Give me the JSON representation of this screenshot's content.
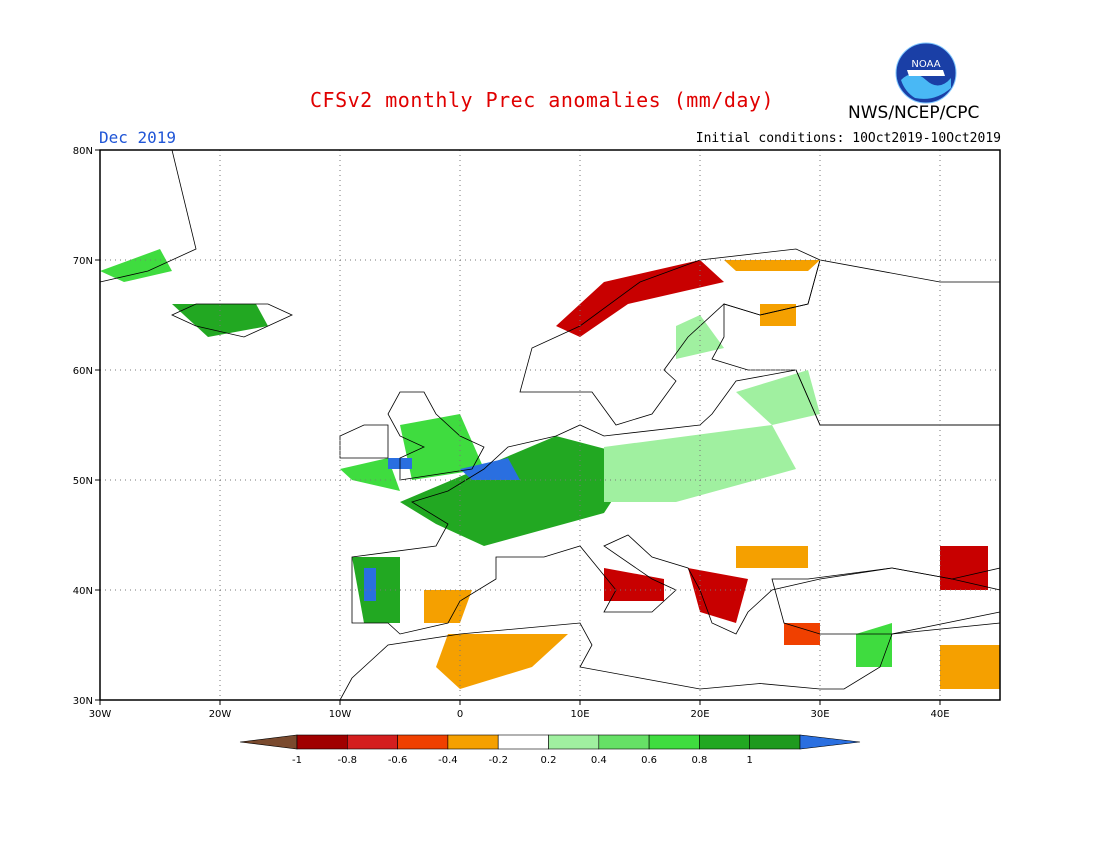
{
  "header": {
    "title": "CFSv2 monthly Prec anomalies (mm/day)",
    "month": "Dec 2019",
    "initial_conditions": "Initial conditions: 10Oct2019-10Oct2019",
    "agency": "NWS/NCEP/CPC",
    "logo_text": "NOAA",
    "logo_icon": "noaa-logo-icon"
  },
  "map": {
    "lon_range": [
      -30,
      45
    ],
    "lat_range": [
      30,
      80
    ],
    "lon_ticks": [
      {
        "value": -30,
        "label": "30W"
      },
      {
        "value": -20,
        "label": "20W"
      },
      {
        "value": -10,
        "label": "10W"
      },
      {
        "value": 0,
        "label": "0"
      },
      {
        "value": 10,
        "label": "10E"
      },
      {
        "value": 20,
        "label": "20E"
      },
      {
        "value": 30,
        "label": "30E"
      },
      {
        "value": 40,
        "label": "40E"
      }
    ],
    "lat_ticks": [
      {
        "value": 80,
        "label": "80N"
      },
      {
        "value": 70,
        "label": "70N"
      },
      {
        "value": 60,
        "label": "60N"
      },
      {
        "value": 50,
        "label": "50N"
      },
      {
        "value": 40,
        "label": "40N"
      },
      {
        "value": 30,
        "label": "30N"
      }
    ],
    "grid": "dotted",
    "anomaly_regions": [
      {
        "level": "0.4",
        "color": "#3fdc3f",
        "lonlat": [
          [
            -30,
            69
          ],
          [
            -25,
            71
          ],
          [
            -24,
            69
          ],
          [
            -28,
            68
          ]
        ]
      },
      {
        "level": "0.6",
        "color": "#22a822",
        "lonlat": [
          [
            -24,
            66
          ],
          [
            -17,
            66
          ],
          [
            -16,
            64
          ],
          [
            -21,
            63
          ]
        ]
      },
      {
        "level": "0.4",
        "color": "#3fdc3f",
        "lonlat": [
          [
            -10,
            51
          ],
          [
            -6,
            52
          ],
          [
            -5,
            49
          ],
          [
            -9,
            50
          ]
        ]
      },
      {
        "level": "0.4",
        "color": "#3fdc3f",
        "lonlat": [
          [
            -5,
            55
          ],
          [
            0,
            56
          ],
          [
            2,
            51
          ],
          [
            -4,
            50
          ]
        ]
      },
      {
        "level": "0.6",
        "color": "#22a822",
        "lonlat": [
          [
            -5,
            48
          ],
          [
            8,
            54
          ],
          [
            15,
            52
          ],
          [
            12,
            47
          ],
          [
            2,
            44
          ],
          [
            -2,
            46
          ]
        ]
      },
      {
        "level": "0.2",
        "color": "#a0f0a0",
        "lonlat": [
          [
            12,
            53
          ],
          [
            26,
            55
          ],
          [
            28,
            51
          ],
          [
            18,
            48
          ],
          [
            12,
            48
          ]
        ]
      },
      {
        "level": "0.2",
        "color": "#a0f0a0",
        "lonlat": [
          [
            18,
            64
          ],
          [
            20,
            65
          ],
          [
            22,
            62
          ],
          [
            18,
            61
          ]
        ]
      },
      {
        "level": "0.2",
        "color": "#a0f0a0",
        "lonlat": [
          [
            23,
            58
          ],
          [
            29,
            60
          ],
          [
            30,
            56
          ],
          [
            26,
            55
          ]
        ]
      },
      {
        "level": "0.6",
        "color": "#22a822",
        "lonlat": [
          [
            -9,
            43
          ],
          [
            -5,
            43
          ],
          [
            -5,
            37
          ],
          [
            -8,
            37
          ]
        ]
      },
      {
        "level": "1",
        "color": "#2a6fe0",
        "lonlat": [
          [
            -8,
            42
          ],
          [
            -7,
            42
          ],
          [
            -7,
            39
          ],
          [
            -8,
            39
          ]
        ]
      },
      {
        "level": "1",
        "color": "#2a6fe0",
        "lonlat": [
          [
            -6,
            52
          ],
          [
            -4,
            52
          ],
          [
            -4,
            51
          ],
          [
            -6,
            51
          ]
        ]
      },
      {
        "level": "1",
        "color": "#2a6fe0",
        "lonlat": [
          [
            0,
            51
          ],
          [
            4,
            52
          ],
          [
            5,
            50
          ],
          [
            1,
            50
          ]
        ]
      },
      {
        "level": "-0.2",
        "color": "#f5a000",
        "lonlat": [
          [
            -3,
            40
          ],
          [
            1,
            40
          ],
          [
            0,
            37
          ],
          [
            -3,
            37
          ]
        ]
      },
      {
        "level": "-0.2",
        "color": "#f5a000",
        "lonlat": [
          [
            -1,
            36
          ],
          [
            9,
            36
          ],
          [
            6,
            33
          ],
          [
            0,
            31
          ],
          [
            -2,
            33
          ]
        ]
      },
      {
        "level": "-0.8",
        "color": "#c80000",
        "lonlat": [
          [
            12,
            42
          ],
          [
            17,
            41
          ],
          [
            17,
            39
          ],
          [
            12,
            39
          ]
        ]
      },
      {
        "level": "-0.8",
        "color": "#c80000",
        "lonlat": [
          [
            19,
            42
          ],
          [
            24,
            41
          ],
          [
            23,
            37
          ],
          [
            20,
            38
          ]
        ]
      },
      {
        "level": "-0.2",
        "color": "#f5a000",
        "lonlat": [
          [
            23,
            44
          ],
          [
            29,
            44
          ],
          [
            29,
            42
          ],
          [
            23,
            42
          ]
        ]
      },
      {
        "level": "-0.4",
        "color": "#f04000",
        "lonlat": [
          [
            27,
            37
          ],
          [
            30,
            37
          ],
          [
            30,
            35
          ],
          [
            27,
            35
          ]
        ]
      },
      {
        "level": "-0.8",
        "color": "#c80000",
        "lonlat": [
          [
            12,
            68
          ],
          [
            20,
            70
          ],
          [
            22,
            68
          ],
          [
            14,
            66
          ],
          [
            10,
            63
          ],
          [
            8,
            64
          ]
        ]
      },
      {
        "level": "-0.2",
        "color": "#f5a000",
        "lonlat": [
          [
            22,
            70
          ],
          [
            30,
            70
          ],
          [
            29,
            69
          ],
          [
            23,
            69
          ]
        ]
      },
      {
        "level": "-0.2",
        "color": "#f5a000",
        "lonlat": [
          [
            25,
            66
          ],
          [
            28,
            66
          ],
          [
            28,
            64
          ],
          [
            25,
            64
          ]
        ]
      },
      {
        "level": "-0.8",
        "color": "#c80000",
        "lonlat": [
          [
            40,
            44
          ],
          [
            44,
            44
          ],
          [
            44,
            40
          ],
          [
            40,
            40
          ]
        ]
      },
      {
        "level": "-0.2",
        "color": "#f5a000",
        "lonlat": [
          [
            40,
            35
          ],
          [
            45,
            35
          ],
          [
            45,
            31
          ],
          [
            40,
            31
          ]
        ]
      },
      {
        "level": "0.4",
        "color": "#3fdc3f",
        "lonlat": [
          [
            33,
            36
          ],
          [
            36,
            37
          ],
          [
            36,
            33
          ],
          [
            33,
            33
          ]
        ]
      }
    ],
    "land_outlines": [
      {
        "name": "scandinavia",
        "lonlat": [
          [
            5,
            58
          ],
          [
            6,
            62
          ],
          [
            10,
            64
          ],
          [
            15,
            68
          ],
          [
            20,
            70
          ],
          [
            28,
            71
          ],
          [
            30,
            70
          ],
          [
            29,
            66
          ],
          [
            25,
            65
          ],
          [
            22,
            66
          ],
          [
            19,
            63
          ],
          [
            17,
            60
          ],
          [
            18,
            59
          ],
          [
            16,
            56
          ],
          [
            13,
            55
          ],
          [
            11,
            58
          ],
          [
            8,
            58
          ]
        ]
      },
      {
        "name": "finland-russia",
        "lonlat": [
          [
            22,
            66
          ],
          [
            25,
            65
          ],
          [
            29,
            66
          ],
          [
            30,
            70
          ],
          [
            40,
            68
          ],
          [
            45,
            68
          ],
          [
            45,
            55
          ],
          [
            30,
            55
          ],
          [
            28,
            60
          ],
          [
            24,
            60
          ],
          [
            21,
            61
          ],
          [
            22,
            63
          ]
        ]
      },
      {
        "name": "central-europe",
        "lonlat": [
          [
            -9,
            43
          ],
          [
            -2,
            44
          ],
          [
            -1,
            46
          ],
          [
            -4,
            48
          ],
          [
            -1,
            49
          ],
          [
            2,
            51
          ],
          [
            4,
            53
          ],
          [
            8,
            54
          ],
          [
            10,
            55
          ],
          [
            12,
            54
          ],
          [
            20,
            55
          ],
          [
            21,
            56
          ],
          [
            23,
            59
          ],
          [
            28,
            60
          ],
          [
            30,
            55
          ],
          [
            45,
            55
          ],
          [
            45,
            42
          ],
          [
            41,
            41
          ],
          [
            36,
            42
          ],
          [
            30,
            41
          ],
          [
            26,
            40
          ],
          [
            24,
            38
          ],
          [
            23,
            36
          ],
          [
            21,
            37
          ],
          [
            20,
            40
          ],
          [
            19,
            42
          ],
          [
            16,
            43
          ],
          [
            14,
            45
          ],
          [
            12,
            44
          ],
          [
            16,
            41
          ],
          [
            18,
            40
          ],
          [
            16,
            38
          ],
          [
            12,
            38
          ],
          [
            13,
            40
          ],
          [
            10,
            44
          ],
          [
            7,
            43
          ],
          [
            3,
            43
          ],
          [
            3,
            41
          ],
          [
            0,
            39
          ],
          [
            -1,
            37
          ],
          [
            -5,
            36
          ],
          [
            -6,
            37
          ],
          [
            -9,
            37
          ]
        ]
      },
      {
        "name": "britain",
        "lonlat": [
          [
            -5,
            50
          ],
          [
            1,
            51
          ],
          [
            2,
            53
          ],
          [
            0,
            54
          ],
          [
            -2,
            56
          ],
          [
            -3,
            58
          ],
          [
            -5,
            58
          ],
          [
            -6,
            56
          ],
          [
            -5,
            54
          ],
          [
            -3,
            53
          ],
          [
            -5,
            52
          ]
        ]
      },
      {
        "name": "ireland",
        "lonlat": [
          [
            -10,
            52
          ],
          [
            -6,
            52
          ],
          [
            -6,
            55
          ],
          [
            -8,
            55
          ],
          [
            -10,
            54
          ]
        ]
      },
      {
        "name": "iceland",
        "lonlat": [
          [
            -24,
            65
          ],
          [
            -22,
            66
          ],
          [
            -16,
            66
          ],
          [
            -14,
            65
          ],
          [
            -18,
            63
          ],
          [
            -22,
            64
          ]
        ]
      },
      {
        "name": "greenland-tip",
        "lonlat": [
          [
            -30,
            68
          ],
          [
            -26,
            69
          ],
          [
            -22,
            71
          ],
          [
            -24,
            80
          ],
          [
            -30,
            80
          ]
        ]
      },
      {
        "name": "north-africa",
        "lonlat": [
          [
            -10,
            30
          ],
          [
            -9,
            32
          ],
          [
            -6,
            35
          ],
          [
            0,
            36
          ],
          [
            10,
            37
          ],
          [
            11,
            35
          ],
          [
            10,
            33
          ],
          [
            15,
            32
          ],
          [
            20,
            31
          ],
          [
            25,
            31.5
          ],
          [
            30,
            31
          ],
          [
            32,
            31
          ],
          [
            35,
            33
          ],
          [
            36,
            36
          ],
          [
            45,
            38
          ],
          [
            45,
            30
          ]
        ]
      },
      {
        "name": "turkey",
        "lonlat": [
          [
            26,
            41
          ],
          [
            29,
            41
          ],
          [
            36,
            42
          ],
          [
            41,
            41
          ],
          [
            45,
            40
          ],
          [
            45,
            37
          ],
          [
            36,
            36
          ],
          [
            30,
            36
          ],
          [
            27,
            37
          ]
        ]
      }
    ]
  },
  "legend": {
    "colors": [
      "#7a4a2e",
      "#a00000",
      "#d41e1e",
      "#f04000",
      "#f5a000",
      "#ffffff",
      "#a0f0a0",
      "#66e066",
      "#3fdc3f",
      "#22a822",
      "#1e9a1e",
      "#2a6fe0"
    ],
    "labels": [
      "-1",
      "-0.8",
      "-0.6",
      "-0.4",
      "-0.2",
      "0.2",
      "0.4",
      "0.6",
      "0.8",
      "1"
    ]
  }
}
